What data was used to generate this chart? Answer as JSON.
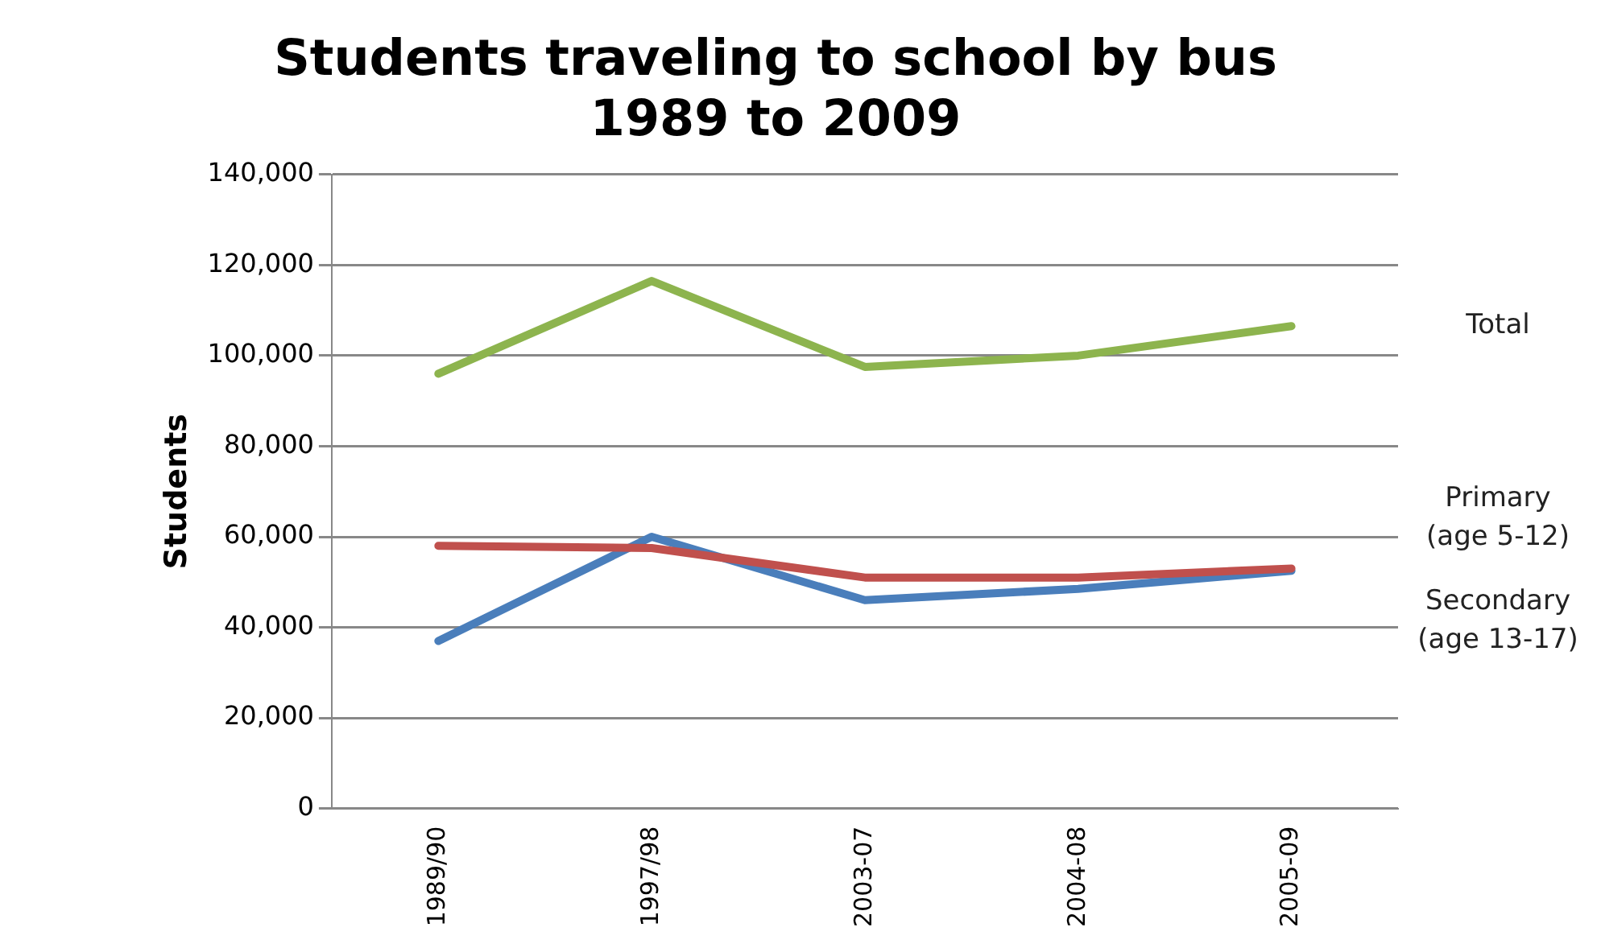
{
  "chart_data": {
    "type": "line",
    "title": "Students traveling to school by bus\n1989 to 2009",
    "ylabel": "Students",
    "categories": [
      "1989/90",
      "1997/98",
      "2003-07",
      "2004-08",
      "2005-09"
    ],
    "series": [
      {
        "name": "Total",
        "color": "#8db44e",
        "values": [
          96000,
          116500,
          97500,
          100000,
          106500
        ]
      },
      {
        "name": "Primary\n(age 5-12)",
        "color": "#c0504d",
        "values": [
          58000,
          57500,
          51000,
          51000,
          53000
        ]
      },
      {
        "name": "Secondary\n(age 13-17)",
        "color": "#4a7ebb",
        "values": [
          37000,
          60000,
          46000,
          48500,
          52500
        ]
      }
    ],
    "ylim": [
      0,
      140000
    ],
    "yticks": [
      0,
      {
        "value": 20000,
        "label": "20,000"
      },
      {
        "value": 40000,
        "label": "40,000"
      },
      {
        "value": 60000,
        "label": "60,000"
      },
      {
        "value": 80000,
        "label": "80,000"
      },
      {
        "value": 100000,
        "label": "100,000"
      },
      {
        "value": 120000,
        "label": "120,000"
      },
      {
        "value": 140000,
        "label": "140,000"
      }
    ],
    "grid": "y",
    "legend": false,
    "marker": "none",
    "line_style": "solid"
  }
}
